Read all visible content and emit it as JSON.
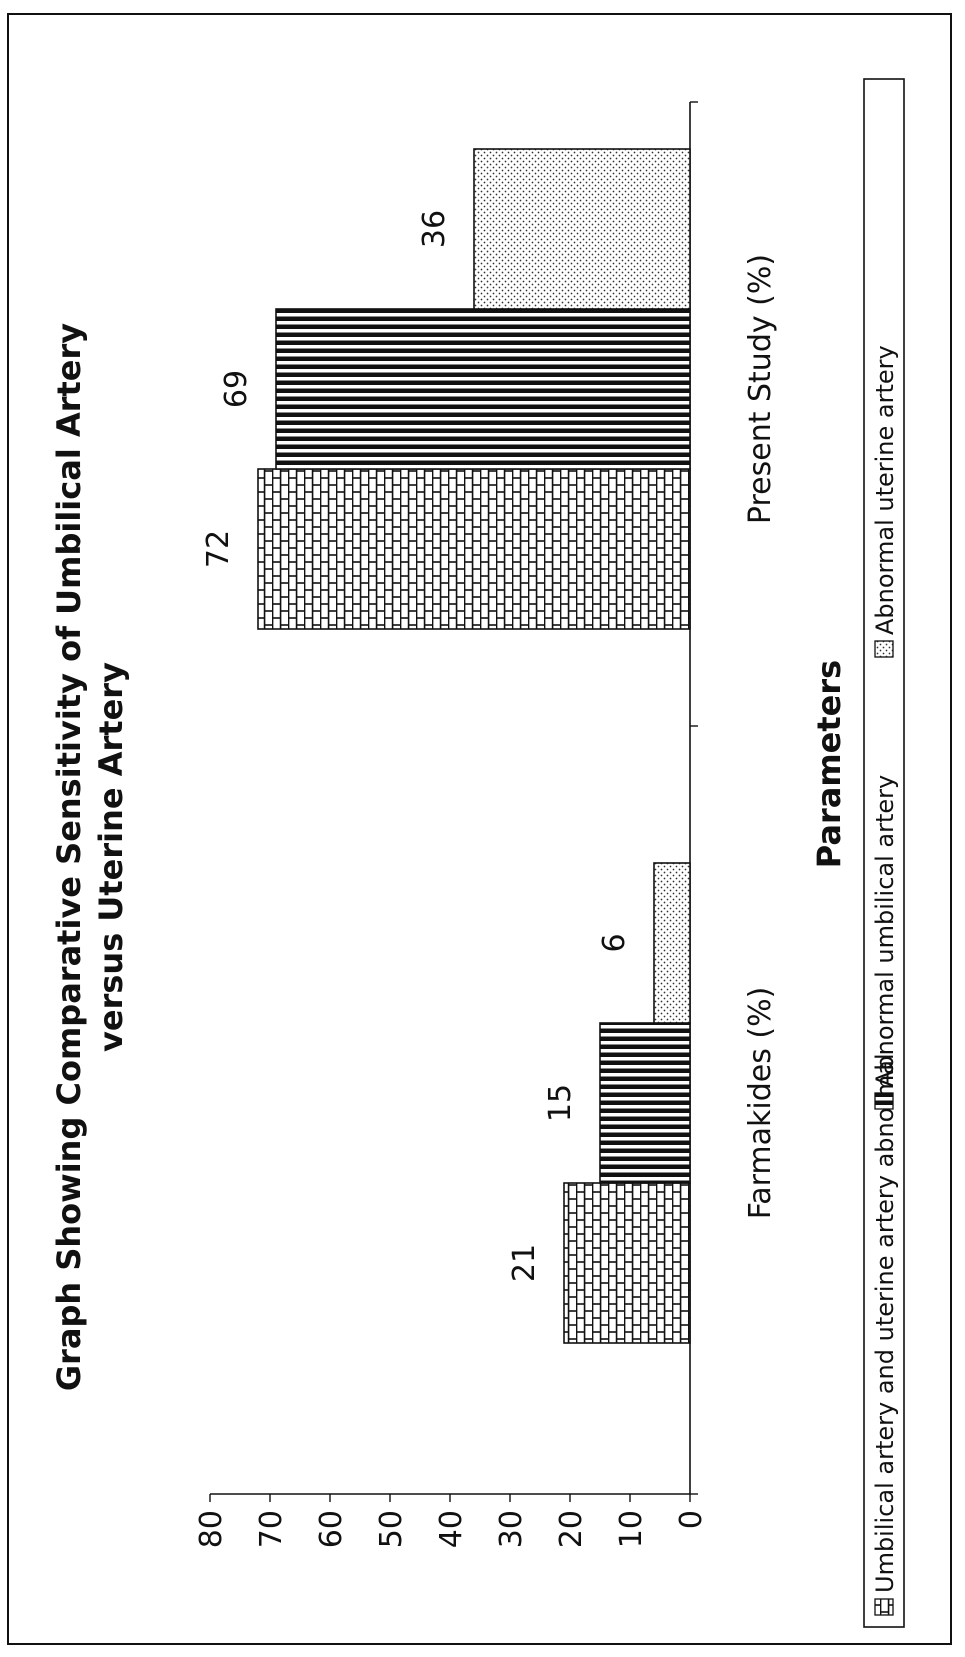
{
  "chart_data": {
    "type": "bar",
    "title": "Graph Showing Comparative Sensitivity of Umbilical Artery",
    "subtitle": "versus Uterine Artery",
    "xlabel": "Parameters",
    "ylabel": "",
    "categories": [
      "Farmakides (%)",
      "Present Study (%)"
    ],
    "ylim": [
      0,
      80
    ],
    "yticks": [
      0,
      10,
      20,
      30,
      40,
      50,
      60,
      70,
      80
    ],
    "series": [
      {
        "name": "Umbilical artery and uterine artery abnormal",
        "values": [
          21,
          72
        ],
        "pattern": "brick"
      },
      {
        "name": "Abnormal umbilical artery",
        "values": [
          15,
          69
        ],
        "pattern": "stripes"
      },
      {
        "name": "Abnormal uterine artery",
        "values": [
          6,
          36
        ],
        "pattern": "dots"
      }
    ],
    "data_labels": true,
    "grid": false,
    "legend_position": "bottom",
    "orientation": "page rotated 90 degrees counter-clockwise",
    "colors": {
      "ink": "#111111",
      "background": "#ffffff"
    }
  }
}
